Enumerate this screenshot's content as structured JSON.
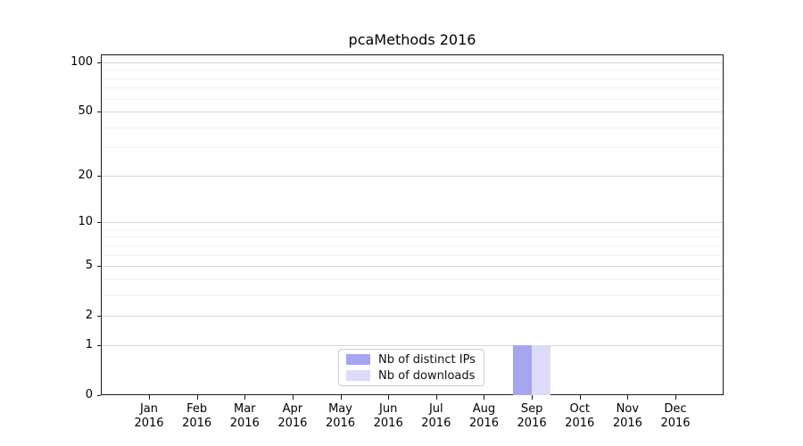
{
  "chart_data": {
    "type": "bar",
    "title": "pcaMethods 2016",
    "categories": [
      "Jan 2016",
      "Feb 2016",
      "Mar 2016",
      "Apr 2016",
      "May 2016",
      "Jun 2016",
      "Jul 2016",
      "Aug 2016",
      "Sep 2016",
      "Oct 2016",
      "Nov 2016",
      "Dec 2016"
    ],
    "series": [
      {
        "name": "Nb of distinct IPs",
        "color": "#a5a5f0",
        "values": [
          0,
          0,
          0,
          0,
          0,
          0,
          0,
          0,
          1,
          0,
          0,
          0
        ]
      },
      {
        "name": "Nb of downloads",
        "color": "#dcdcf8",
        "values": [
          0,
          0,
          0,
          0,
          0,
          0,
          0,
          0,
          1,
          0,
          0,
          0
        ]
      }
    ],
    "yscale": "log1p",
    "y_major_ticks": [
      0,
      1,
      2,
      5,
      10,
      20,
      50,
      100
    ],
    "y_minor_ticks": [
      3,
      4,
      6,
      7,
      8,
      9,
      30,
      40,
      60,
      70,
      80,
      90
    ],
    "ylim": [
      0,
      112
    ],
    "xlabel": "",
    "ylabel": "",
    "grid": "horizontal",
    "legend_position": "inside-bottom-center"
  },
  "colors": {
    "major_grid": "#d4d4d4",
    "minor_grid": "#f0f0f0",
    "spine": "#1a1a1a",
    "legend_border": "#cccccc",
    "text": "#111111"
  }
}
